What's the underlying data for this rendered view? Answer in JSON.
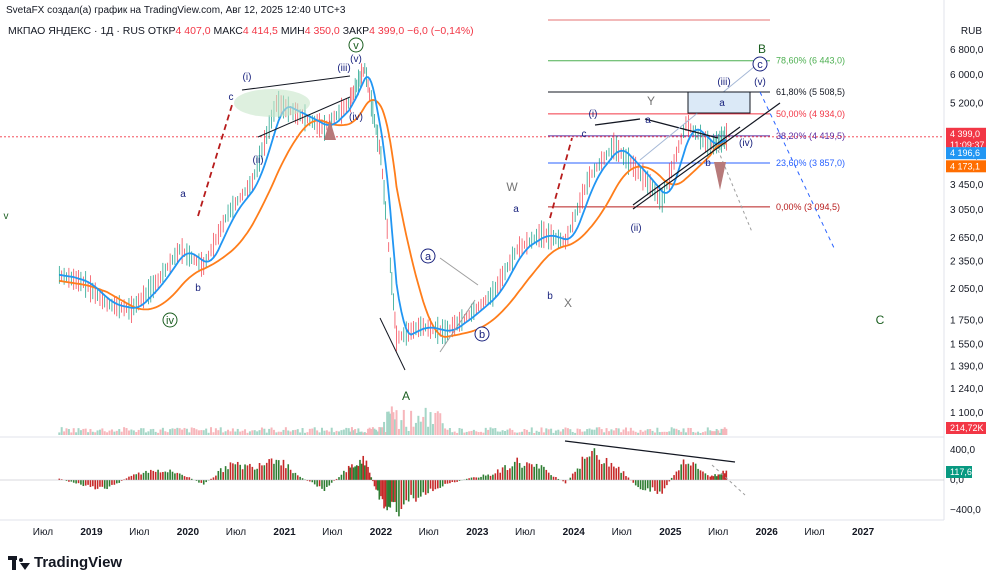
{
  "header": {
    "credit": "SvetaFX создал(а) график на TradingView.com, Авг 12, 2025 12:40 UTC+3",
    "symbol": "МКПАО ЯНДЕКС · 1Д · RUS",
    "open_label": "ОТКР",
    "open": "4 407,0",
    "high_label": "МАКС",
    "high": "4 414,5",
    "low_label": "МИН",
    "low": "4 350,0",
    "close_label": "ЗАКР",
    "close": "4 399,0",
    "change": "−6,0 (−0,14%)",
    "currency": "RUB"
  },
  "price_axis": {
    "ticks": [
      "6 800,0",
      "6 000,0",
      "5 200,0",
      "4 000,0",
      "3 450,0",
      "3 050,0",
      "2 650,0",
      "2 350,0",
      "2 050,0",
      "1 750,0",
      "1 550,0",
      "1 390,0",
      "1 240,0",
      "1 100,0"
    ],
    "badges": [
      {
        "text": "4 399,0",
        "color": "#f23645",
        "price": 4399
      },
      {
        "text": "11:09:37",
        "color": "#f23645",
        "price": 4300
      },
      {
        "text": "4 196,6",
        "color": "#2196f3",
        "price": 4196.6
      },
      {
        "text": "4 173,1",
        "color": "#ff6d00",
        "price": 4173.1
      },
      {
        "text": "214,72K",
        "color": "#f23645",
        "price": 0
      }
    ]
  },
  "oscillator_axis": {
    "ticks": [
      "400,0",
      "0,0",
      "−400,0"
    ],
    "badge": "117,6"
  },
  "time_axis": {
    "ticks": [
      "Июл",
      "2019",
      "Июл",
      "2020",
      "Июл",
      "2021",
      "Июл",
      "2022",
      "Июл",
      "2023",
      "Июл",
      "2024",
      "Июл",
      "2025",
      "Июл",
      "2026",
      "Июл",
      "2027"
    ]
  },
  "fib_levels": [
    {
      "text": "78,60% (6 443,0)",
      "color": "#4caf50",
      "price": 6443
    },
    {
      "text": "61,80% (5 508,5)",
      "color": "#131722",
      "price": 5508.5
    },
    {
      "text": "50,00% (4 934,0)",
      "color": "#f23645",
      "price": 4934
    },
    {
      "text": "38,20% (4 419,5)",
      "color": "#5b2c9f",
      "price": 4419.5
    },
    {
      "text": "23,60% (3 857,0)",
      "color": "#2962ff",
      "price": 3857
    },
    {
      "text": "0,00% (3 094,5)",
      "color": "#b71c1c",
      "price": 3094.5
    }
  ],
  "wave_labels": {
    "green": [
      "v",
      "iv",
      "A",
      "B",
      "C"
    ],
    "blue_circled": [
      "a",
      "b",
      "c"
    ],
    "blue_roman": [
      "(i)",
      "(ii)",
      "(iii)",
      "(iv)",
      "(v)",
      "(i)",
      "(ii)",
      "(iii)",
      "(iv)",
      "(v)"
    ],
    "blue_letters": [
      "a",
      "b",
      "c",
      "a",
      "b",
      "a",
      "b",
      "c",
      "a",
      "b",
      "c"
    ],
    "gray": [
      "W",
      "X",
      "Y"
    ],
    "green_side": [
      "v"
    ]
  },
  "brand": {
    "name": "TradingView"
  },
  "chart_data": {
    "type": "line",
    "title": "",
    "xlabel": "",
    "ylabel": "",
    "x": [
      "2018-09",
      "2018-12",
      "2019-03",
      "2019-06",
      "2019-09",
      "2019-12",
      "2020-03",
      "2020-06",
      "2020-09",
      "2020-12",
      "2021-03",
      "2021-06",
      "2021-09",
      "2021-11",
      "2022-01",
      "2022-03",
      "2022-06",
      "2022-09",
      "2022-12",
      "2023-03",
      "2023-06",
      "2023-09",
      "2023-12",
      "2024-03",
      "2024-06",
      "2024-09",
      "2024-12",
      "2025-03",
      "2025-06",
      "2025-08"
    ],
    "series": [
      {
        "values": [
          2200,
          2120,
          1900,
          1850,
          2100,
          2500,
          2300,
          3000,
          3500,
          5200,
          4900,
          4600,
          5200,
          6200,
          4000,
          1600,
          1700,
          1650,
          1800,
          2000,
          2500,
          2700,
          2600,
          3600,
          4200,
          3700,
          3200,
          4700,
          4200,
          4399
        ]
      }
    ],
    "ylim": [
      1000,
      7400
    ],
    "oscillator": [
      20,
      -80,
      -120,
      60,
      140,
      90,
      -60,
      200,
      180,
      320,
      40,
      -120,
      160,
      260,
      -300,
      -420,
      -180,
      -60,
      20,
      80,
      240,
      160,
      -40,
      360,
      220,
      -100,
      -160,
      300,
      40,
      117.6
    ]
  }
}
